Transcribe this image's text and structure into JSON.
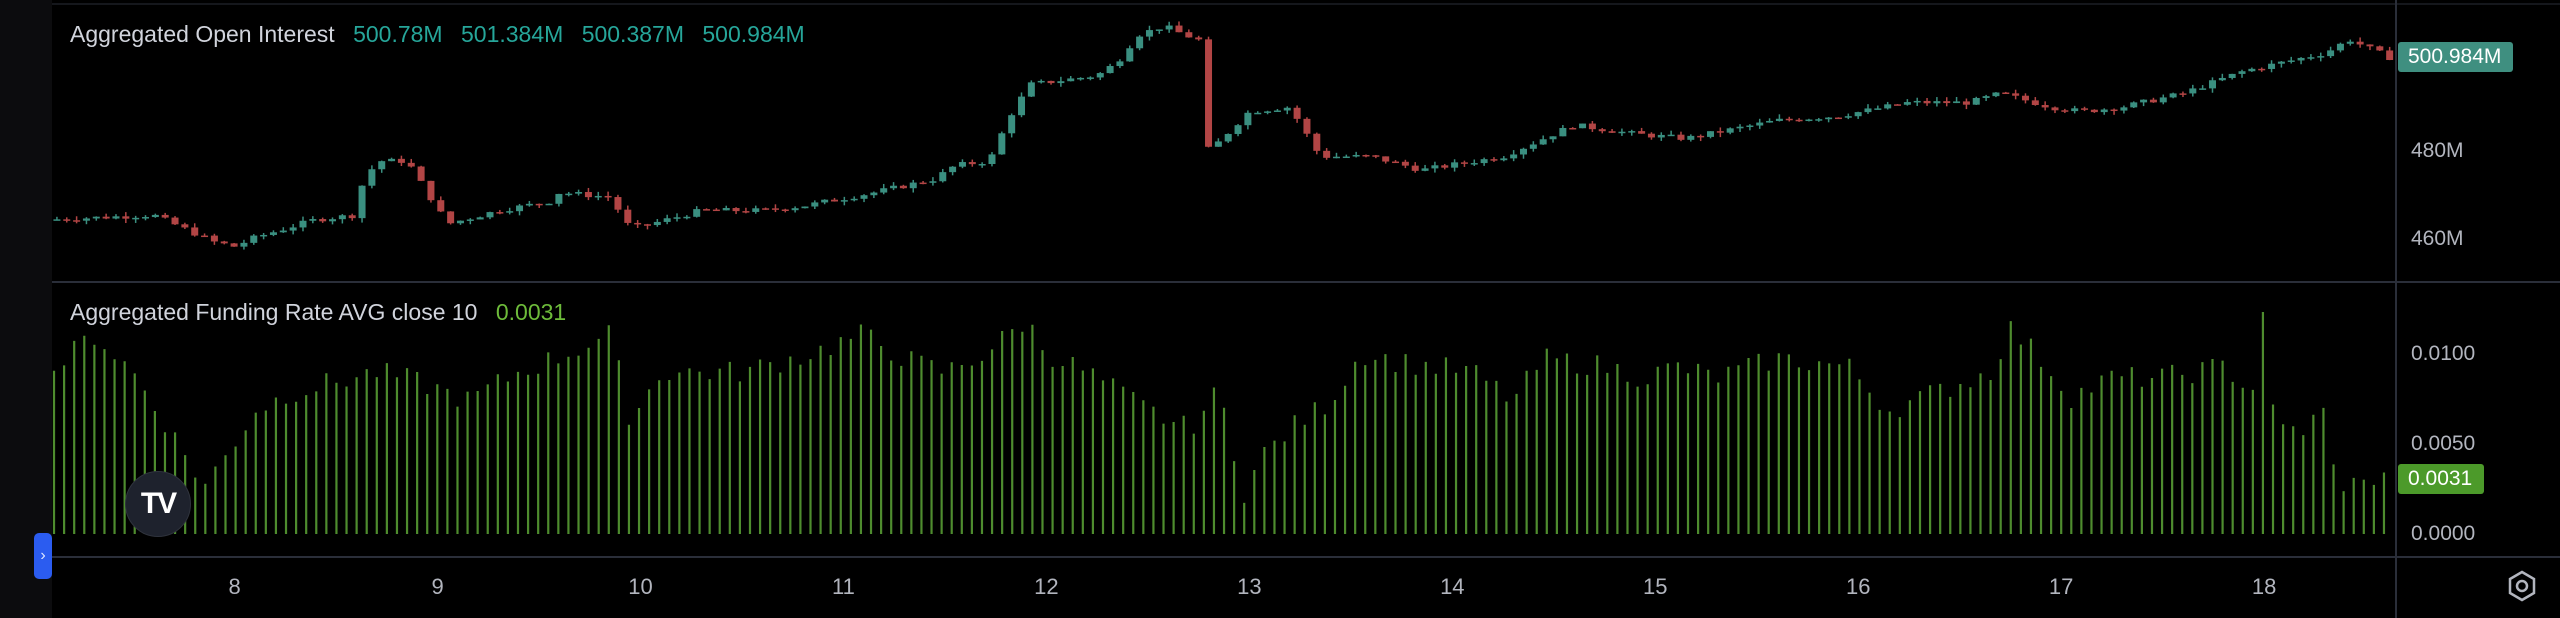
{
  "ui": {
    "logo_text": "TV",
    "collapse_icon": "chevron-right-icon",
    "settings_icon": "gear-icon",
    "colors": {
      "background": "#000000",
      "up": "#26a69a",
      "down": "#ef5350",
      "up_candle": "#3a8f80",
      "down_candle": "#b24545",
      "hist": "#4e8c2e",
      "oi_tag": "#3f8f80",
      "fr_tag": "#4c9a2a",
      "grid": "#2a2e39",
      "axis_text": "#b2b5be"
    }
  },
  "chart_data": [
    {
      "type": "candlestick",
      "name": "Aggregated Open Interest",
      "legend": {
        "title": "Aggregated Open Interest",
        "values": [
          "500.78M",
          "501.384M",
          "500.387M",
          "500.984M"
        ]
      },
      "y_unit": "M",
      "ylim": [
        452,
        512
      ],
      "y_ticks": [
        {
          "value": 480,
          "label": "480M"
        },
        {
          "value": 460,
          "label": "460M"
        }
      ],
      "last_value_tag": "500.984M",
      "x_range": [
        7.1,
        18.65
      ],
      "x_ticks": [
        "8",
        "9",
        "10",
        "11",
        "12",
        "13",
        "14",
        "15",
        "16",
        "17",
        "18"
      ],
      "x_tick_values": [
        8,
        9,
        10,
        11,
        12,
        13,
        14,
        15,
        16,
        17,
        18
      ],
      "close_path": [
        [
          7.1,
          465
        ],
        [
          7.6,
          466
        ],
        [
          7.9,
          460
        ],
        [
          8.0,
          459
        ],
        [
          8.1,
          461
        ],
        [
          8.4,
          465
        ],
        [
          8.6,
          466
        ],
        [
          8.62,
          472
        ],
        [
          8.7,
          478
        ],
        [
          8.85,
          478
        ],
        [
          9.05,
          464
        ],
        [
          9.3,
          467
        ],
        [
          9.55,
          469
        ],
        [
          9.6,
          471
        ],
        [
          9.85,
          470
        ],
        [
          9.95,
          463
        ],
        [
          10.05,
          464
        ],
        [
          10.3,
          467
        ],
        [
          10.6,
          467
        ],
        [
          10.8,
          468
        ],
        [
          11.15,
          471
        ],
        [
          11.45,
          474
        ],
        [
          11.55,
          477
        ],
        [
          11.72,
          478
        ],
        [
          11.82,
          488
        ],
        [
          11.92,
          495
        ],
        [
          12.25,
          497
        ],
        [
          12.35,
          500
        ],
        [
          12.45,
          506
        ],
        [
          12.58,
          508
        ],
        [
          12.68,
          506
        ],
        [
          12.75,
          505
        ],
        [
          12.8,
          480
        ],
        [
          13.0,
          489
        ],
        [
          13.2,
          490
        ],
        [
          13.35,
          479
        ],
        [
          13.6,
          479
        ],
        [
          13.85,
          476
        ],
        [
          14.25,
          479
        ],
        [
          14.6,
          486
        ],
        [
          14.9,
          484
        ],
        [
          15.15,
          483
        ],
        [
          15.6,
          487
        ],
        [
          15.9,
          488
        ],
        [
          16.25,
          491
        ],
        [
          16.55,
          491
        ],
        [
          16.7,
          493
        ],
        [
          16.95,
          490
        ],
        [
          17.1,
          489
        ],
        [
          17.3,
          490
        ],
        [
          17.6,
          493
        ],
        [
          17.9,
          498
        ],
        [
          18.3,
          502
        ],
        [
          18.42,
          505
        ],
        [
          18.62,
          501
        ]
      ]
    },
    {
      "type": "histogram",
      "name": "Aggregated Funding Rate AVG close 10",
      "legend": {
        "title": "Aggregated Funding Rate AVG close 10",
        "values": [
          "0.0031"
        ]
      },
      "ylim": [
        0,
        0.0128
      ],
      "y_ticks": [
        {
          "value": 0.01,
          "label": "0.0100"
        },
        {
          "value": 0.005,
          "label": "0.0050"
        },
        {
          "value": 0,
          "label": "0.0000"
        }
      ],
      "last_value_tag": "0.0031",
      "x_range": [
        7.1,
        18.65
      ],
      "profile": [
        [
          7.1,
          0.0085
        ],
        [
          7.2,
          0.0095
        ],
        [
          7.3,
          0.0105
        ],
        [
          7.5,
          0.0085
        ],
        [
          7.65,
          0.006
        ],
        [
          7.85,
          0.0025
        ],
        [
          7.95,
          0.004
        ],
        [
          8.1,
          0.0065
        ],
        [
          8.3,
          0.0075
        ],
        [
          8.5,
          0.008
        ],
        [
          8.7,
          0.0085
        ],
        [
          8.9,
          0.008
        ],
        [
          9.15,
          0.007
        ],
        [
          9.4,
          0.0085
        ],
        [
          9.65,
          0.0095
        ],
        [
          9.85,
          0.0105
        ],
        [
          9.95,
          0.006
        ],
        [
          10.1,
          0.0085
        ],
        [
          10.5,
          0.0085
        ],
        [
          10.85,
          0.0095
        ],
        [
          11.1,
          0.0105
        ],
        [
          11.3,
          0.0092
        ],
        [
          11.5,
          0.0085
        ],
        [
          11.7,
          0.0095
        ],
        [
          11.9,
          0.0112
        ],
        [
          12.0,
          0.0095
        ],
        [
          12.2,
          0.0085
        ],
        [
          12.35,
          0.0075
        ],
        [
          12.5,
          0.0065
        ],
        [
          12.7,
          0.0055
        ],
        [
          12.85,
          0.0075
        ],
        [
          12.98,
          0.002
        ],
        [
          13.05,
          0.004
        ],
        [
          13.2,
          0.0055
        ],
        [
          13.4,
          0.007
        ],
        [
          13.55,
          0.0095
        ],
        [
          13.75,
          0.009
        ],
        [
          14.1,
          0.0085
        ],
        [
          14.3,
          0.007
        ],
        [
          14.45,
          0.0092
        ],
        [
          14.75,
          0.0088
        ],
        [
          14.95,
          0.0082
        ],
        [
          15.1,
          0.0088
        ],
        [
          15.3,
          0.0082
        ],
        [
          15.6,
          0.0092
        ],
        [
          15.95,
          0.0088
        ],
        [
          16.15,
          0.0065
        ],
        [
          16.4,
          0.0075
        ],
        [
          16.65,
          0.0085
        ],
        [
          16.75,
          0.0108
        ],
        [
          16.9,
          0.0092
        ],
        [
          17.05,
          0.0072
        ],
        [
          17.25,
          0.0082
        ],
        [
          17.5,
          0.0082
        ],
        [
          17.8,
          0.0088
        ],
        [
          17.95,
          0.0075
        ],
        [
          18.0,
          0.0125
        ],
        [
          18.05,
          0.0055
        ],
        [
          18.2,
          0.0055
        ],
        [
          18.3,
          0.0065
        ],
        [
          18.35,
          0.0028
        ],
        [
          18.5,
          0.0025
        ],
        [
          18.58,
          0.0035
        ],
        [
          18.62,
          0.003
        ]
      ]
    }
  ]
}
